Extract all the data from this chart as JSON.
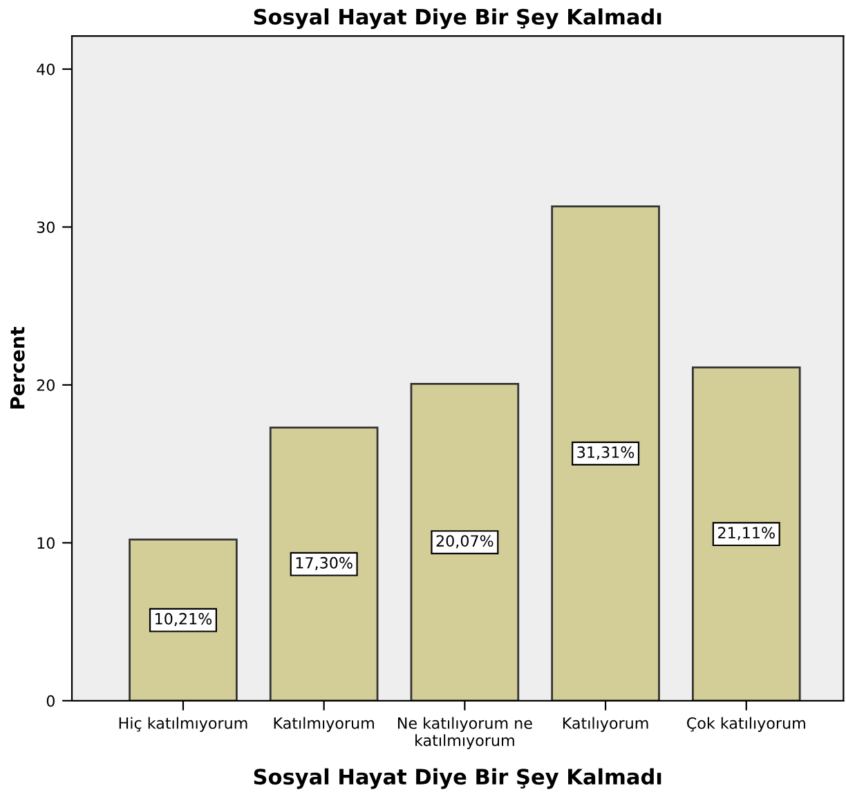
{
  "chart_data": {
    "type": "bar",
    "title": "Sosyal Hayat Diye Bir Şey Kalmadı",
    "xlabel": "Sosyal Hayat Diye Bir Şey Kalmadı",
    "ylabel": "Percent",
    "categories": [
      "Hiç katılmıyorum",
      "Katılmıyorum",
      "Ne katılıyorum ne katılmıyorum",
      "Katılıyorum",
      "Çok katılıyorum"
    ],
    "values": [
      10.21,
      17.3,
      20.07,
      31.31,
      21.11
    ],
    "value_labels": [
      "10,21%",
      "17,30%",
      "20,07%",
      "31,31%",
      "21,11%"
    ],
    "color": "#d3ce97",
    "ylim": [
      0,
      42.1
    ],
    "yticks": [
      0,
      10,
      20,
      30,
      40
    ],
    "grid": false,
    "legend": false
  }
}
